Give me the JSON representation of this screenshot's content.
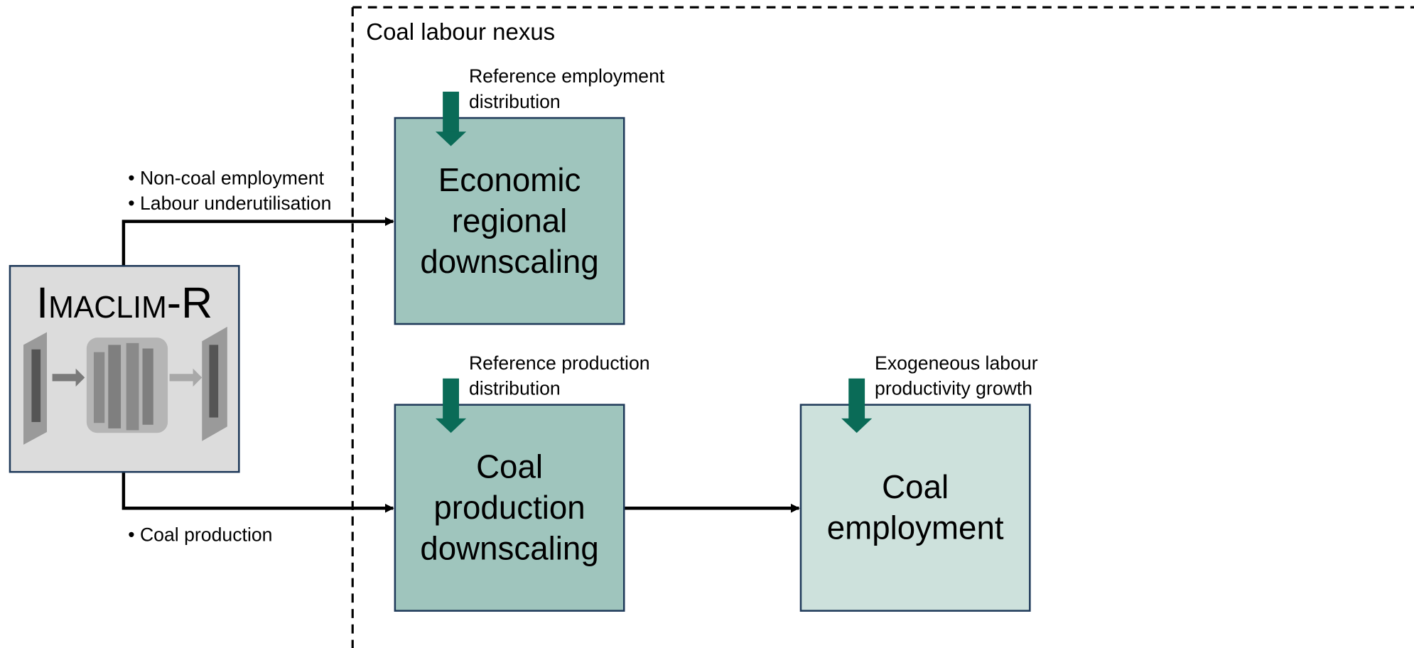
{
  "region_label": "Coal labour nexus",
  "model": {
    "title": "Imaclim-R"
  },
  "nodes": [
    {
      "label": [
        "Economic",
        "regional",
        "downscaling"
      ],
      "input": [
        "Reference employment",
        "distribution"
      ]
    },
    {
      "label": [
        "Coal",
        "production",
        "downscaling"
      ],
      "input": [
        "Reference production",
        "distribution"
      ]
    },
    {
      "label": [
        "Coal",
        "employment"
      ],
      "input": [
        "Exogeneous labour",
        "productivity growth"
      ]
    }
  ],
  "flows": {
    "upper": [
      "Non-coal employment",
      "Labour underutilisation"
    ],
    "lower": [
      "Coal production"
    ]
  }
}
